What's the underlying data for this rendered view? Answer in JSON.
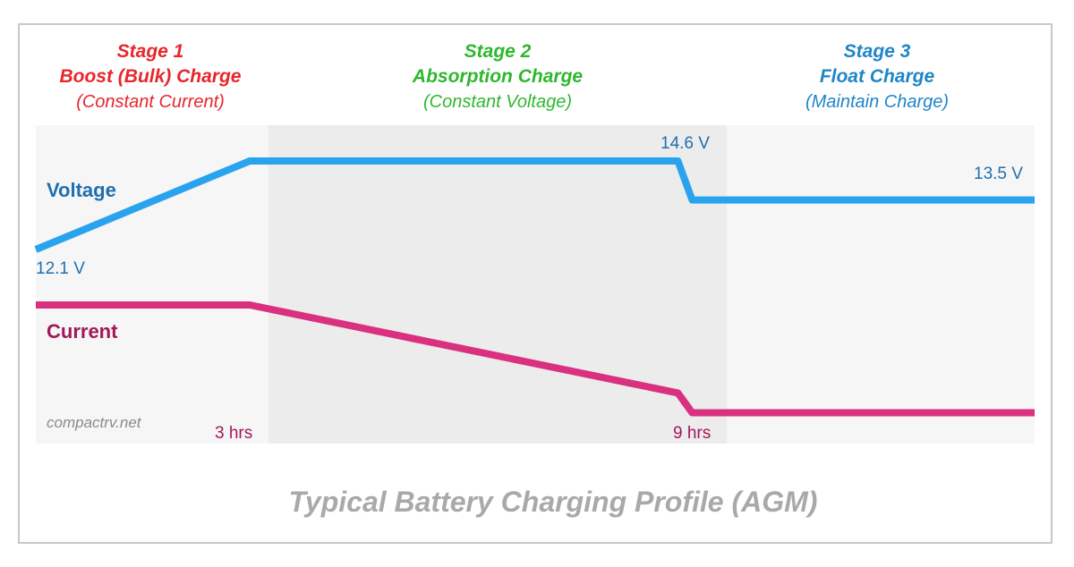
{
  "stages": [
    {
      "number": "Stage 1",
      "name": "Boost (Bulk) Charge",
      "sub": "(Constant Current)",
      "color": "#e8262b"
    },
    {
      "number": "Stage 2",
      "name": "Absorption Charge",
      "sub": "(Constant Voltage)",
      "color": "#2eb82e"
    },
    {
      "number": "Stage 3",
      "name": "Float Charge",
      "sub": "(Maintain Charge)",
      "color": "#1f86c8"
    }
  ],
  "labels": {
    "voltage": "Voltage",
    "current": "Current",
    "v_start": "12.1 V",
    "v_absorb": "14.6 V",
    "v_float": "13.5 V",
    "t1": "3 hrs",
    "t2": "9 hrs",
    "watermark": "compactrv.net"
  },
  "caption": "Typical Battery Charging Profile (AGM)",
  "colors": {
    "voltage": "#2aa3ee",
    "voltage_label": "#1f6fb0",
    "current": "#d9307f",
    "current_label": "#a0185a",
    "band_light": "#f6f6f6",
    "band_dark": "#ececec"
  },
  "chart_data": {
    "type": "line",
    "x": [
      0,
      3,
      9,
      9.2,
      14
    ],
    "series": [
      {
        "name": "Voltage",
        "values": [
          12.1,
          14.6,
          14.6,
          13.5,
          13.5
        ]
      },
      {
        "name": "Current",
        "values": [
          1.0,
          1.0,
          0.2,
          0.02,
          0.02
        ]
      }
    ],
    "annotations": [
      "12.1 V",
      "14.6 V",
      "13.5 V",
      "3 hrs",
      "9 hrs"
    ],
    "title": "Typical Battery Charging Profile (AGM)",
    "grid": false
  }
}
